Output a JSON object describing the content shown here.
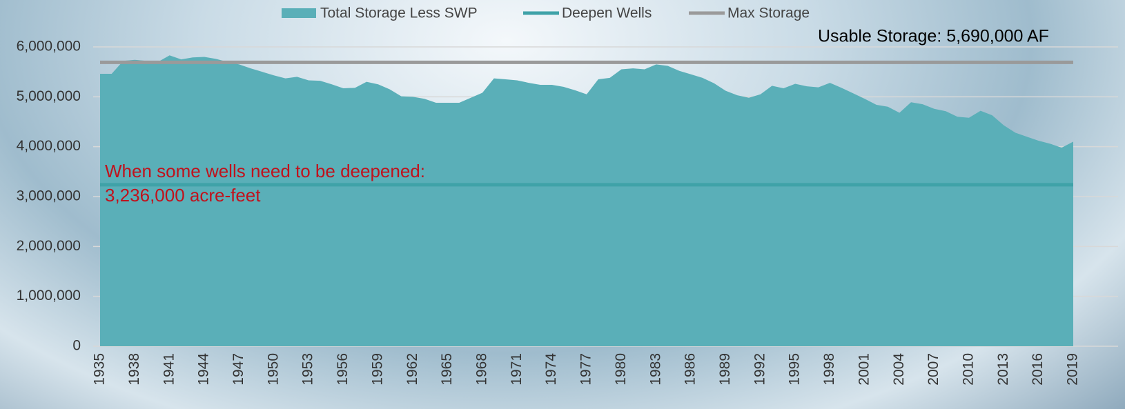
{
  "chart_data": {
    "type": "area",
    "categories": [
      "1935",
      null,
      null,
      "1938",
      null,
      null,
      "1941",
      null,
      null,
      "1944",
      null,
      null,
      "1947",
      null,
      null,
      "1950",
      null,
      null,
      "1953",
      null,
      null,
      "1956",
      null,
      null,
      "1959",
      null,
      null,
      "1962",
      null,
      null,
      "1965",
      null,
      null,
      "1968",
      null,
      null,
      "1971",
      null,
      null,
      "1974",
      null,
      null,
      "1977",
      null,
      null,
      "1980",
      null,
      null,
      "1983",
      null,
      null,
      "1986",
      null,
      null,
      "1989",
      null,
      null,
      "1992",
      null,
      null,
      "1995",
      null,
      null,
      "1998",
      null,
      null,
      "2001",
      null,
      null,
      "2004",
      null,
      null,
      "2007",
      null,
      null,
      "2010",
      null,
      null,
      "2013",
      null,
      null,
      "2016",
      null,
      null,
      "2019"
    ],
    "series": [
      {
        "name": "Total Storage Less SWP",
        "color": "#5aafb8",
        "values": [
          5460000,
          5460000,
          5720000,
          5740000,
          5720000,
          5700000,
          5830000,
          5750000,
          5790000,
          5800000,
          5760000,
          5700000,
          5650000,
          5570000,
          5500000,
          5430000,
          5370000,
          5400000,
          5330000,
          5320000,
          5250000,
          5170000,
          5180000,
          5300000,
          5250000,
          5150000,
          5010000,
          5000000,
          4960000,
          4880000,
          4880000,
          4880000,
          4980000,
          5080000,
          5370000,
          5350000,
          5330000,
          5280000,
          5240000,
          5240000,
          5200000,
          5130000,
          5050000,
          5350000,
          5380000,
          5550000,
          5570000,
          5550000,
          5650000,
          5620000,
          5520000,
          5450000,
          5380000,
          5270000,
          5120000,
          5030000,
          4980000,
          5050000,
          5220000,
          5170000,
          5260000,
          5210000,
          5190000,
          5280000,
          5180000,
          5070000,
          4960000,
          4840000,
          4800000,
          4680000,
          4890000,
          4850000,
          4760000,
          4710000,
          4600000,
          4580000,
          4720000,
          4630000,
          4430000,
          4280000,
          4200000,
          4120000,
          4060000,
          3980000,
          4100000
        ]
      }
    ],
    "lines": [
      {
        "name": "Deepen Wells",
        "color": "#3fa2a8",
        "value": 3236000
      },
      {
        "name": "Max Storage",
        "color": "#9a9a9a",
        "value": 5690000
      }
    ],
    "annotations": [
      "Usable Storage:  5,690,000 AF",
      "When some wells  need to be deepened:",
      "3,236,000 acre-feet"
    ],
    "ylim": [
      0,
      6000000
    ],
    "yticks": [
      0,
      {
        "value": 1000000,
        "label": "1,000,000"
      },
      {
        "value": 2000000,
        "label": "2,000,000"
      },
      {
        "value": 3000000,
        "label": "3,000,000"
      },
      {
        "value": 4000000,
        "label": "4,000,000"
      },
      {
        "value": 5000000,
        "label": "5,000,000"
      },
      {
        "value": 6000000,
        "label": "6,000,000"
      }
    ],
    "grid": true
  }
}
